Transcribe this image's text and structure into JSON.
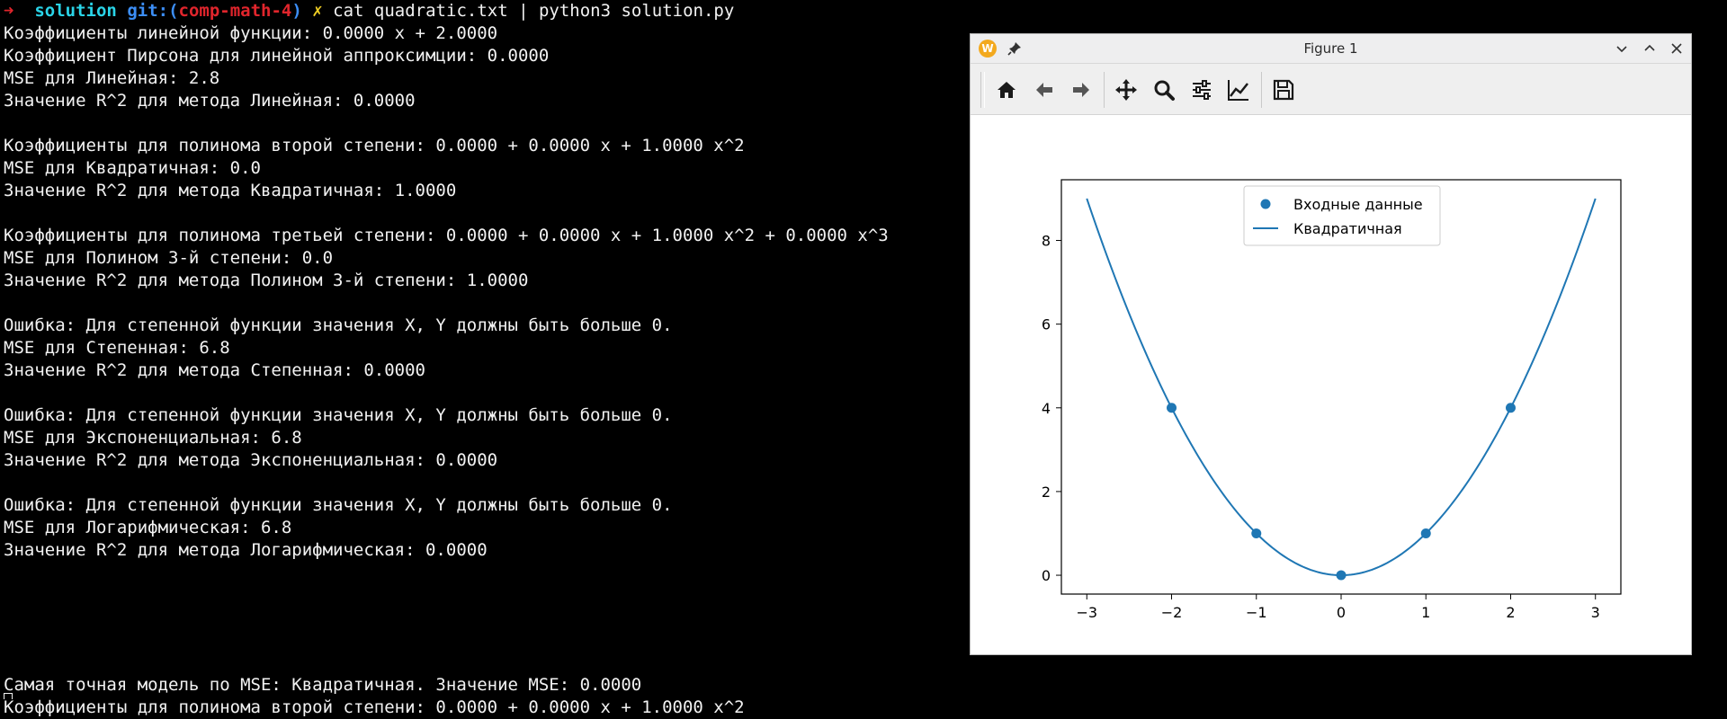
{
  "terminal": {
    "prompt": {
      "arrow": "➜",
      "dir": "solution",
      "git_prefix": "git:(",
      "branch": "comp-math-4",
      "git_suffix": ")",
      "dirty": "✗",
      "command": "cat quadratic.txt | python3 solution.py"
    },
    "output_lines": [
      "Коэффициенты линейной функции: 0.0000 x + 2.0000",
      "Коэффициент Пирсона для линейной аппроксимции: 0.0000",
      "MSE для Линейная: 2.8",
      "Значение R^2 для метода Линейная: 0.0000",
      "",
      "Коэффициенты для полинома второй степени: 0.0000 + 0.0000 x + 1.0000 x^2",
      "MSE для Квадратичная: 0.0",
      "Значение R^2 для метода Квадратичная: 1.0000",
      "",
      "Коэффициенты для полинома третьей степени: 0.0000 + 0.0000 x + 1.0000 x^2 + 0.0000 x^3",
      "MSE для Полином 3-й степени: 0.0",
      "Значение R^2 для метода Полином 3-й степени: 1.0000",
      "",
      "Ошибка: Для степенной функции значения X, Y должны быть больше 0.",
      "MSE для Степенная: 6.8",
      "Значение R^2 для метода Степенная: 0.0000",
      "",
      "Ошибка: Для степенной функции значения X, Y должны быть больше 0.",
      "MSE для Экспоненциальная: 6.8",
      "Значение R^2 для метода Экспоненциальная: 0.0000",
      "",
      "Ошибка: Для степенной функции значения X, Y должны быть больше 0.",
      "MSE для Логарифмическая: 6.8",
      "Значение R^2 для метода Логарифмическая: 0.0000",
      "",
      "",
      "",
      "",
      "",
      "Самая точная модель по MSE: Квадратичная. Значение MSE: 0.0000",
      "Коэффициенты для полинома второй степени: 0.0000 + 0.0000 x + 1.0000 x^2"
    ]
  },
  "figure_window": {
    "title": "Figure 1",
    "app_icon_letter": "W",
    "toolbar": [
      {
        "icon": "home-icon"
      },
      {
        "icon": "back-arrow-icon"
      },
      {
        "icon": "forward-arrow-icon"
      },
      {
        "icon": "pan-icon"
      },
      {
        "icon": "zoom-icon"
      },
      {
        "icon": "configure-subplots-icon"
      },
      {
        "icon": "edit-axis-icon"
      },
      {
        "icon": "save-icon"
      }
    ]
  },
  "chart_data": {
    "type": "scatter",
    "title": "",
    "xlabel": "",
    "ylabel": "",
    "xlim": [
      -3.3,
      3.3
    ],
    "ylim": [
      -0.45,
      9.45
    ],
    "xticks": [
      -3,
      -2,
      -1,
      0,
      1,
      2,
      3
    ],
    "xtick_labels": [
      "−3",
      "−2",
      "−1",
      "0",
      "1",
      "2",
      "3"
    ],
    "yticks": [
      0,
      2,
      4,
      6,
      8
    ],
    "ytick_labels": [
      "0",
      "2",
      "4",
      "6",
      "8"
    ],
    "grid": false,
    "legend_position": "upper center",
    "color": "#1f77b4",
    "series": [
      {
        "name": "Входные данные",
        "kind": "scatter",
        "x": [
          -2,
          -1,
          0,
          1,
          2
        ],
        "y": [
          4,
          1,
          0,
          1,
          4
        ]
      },
      {
        "name": "Квадратичная",
        "kind": "line",
        "x_range": [
          -3,
          3
        ],
        "coefficients": [
          0.0,
          0.0,
          1.0
        ]
      }
    ]
  }
}
